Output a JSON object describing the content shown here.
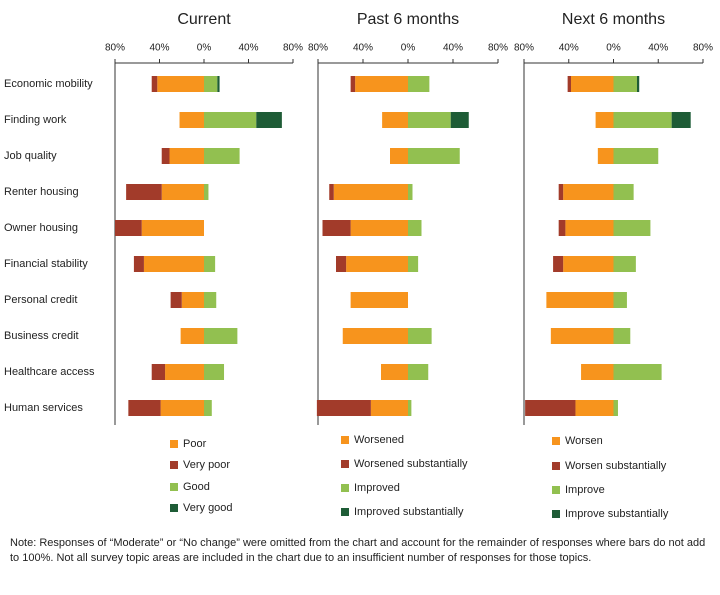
{
  "chart_data": [
    {
      "type": "bar",
      "orientation": "horizontal",
      "stacked": true,
      "title": "Current",
      "categories": [
        "Economic mobility",
        "Finding work",
        "Job quality",
        "Renter housing",
        "Owner housing",
        "Financial stability",
        "Personal credit",
        "Business credit",
        "Healthcare access",
        "Human services"
      ],
      "xlim": [
        -80,
        80
      ],
      "xticks": [
        {
          "value": -80,
          "label": "80%"
        },
        {
          "value": -40,
          "label": "40%"
        },
        {
          "value": 0,
          "label": "0%"
        },
        {
          "value": 40,
          "label": "40%"
        },
        {
          "value": 80,
          "label": "80%"
        }
      ],
      "series": [
        {
          "name": "Poor",
          "color": "#f7941d",
          "values": [
            -42,
            -22,
            -31,
            -38,
            -56,
            -54,
            -20,
            -21,
            -35,
            -39
          ]
        },
        {
          "name": "Very poor",
          "color": "#a23b2a",
          "values": [
            -5,
            0,
            -7,
            -32,
            -24,
            -9,
            -10,
            0,
            -12,
            -29
          ]
        },
        {
          "name": "Good",
          "color": "#92c050",
          "values": [
            12,
            47,
            32,
            4,
            0,
            10,
            11,
            30,
            18,
            7
          ]
        },
        {
          "name": "Very good",
          "color": "#1e5c36",
          "values": [
            2,
            23,
            0,
            0,
            0,
            0,
            0,
            0,
            0,
            0
          ]
        }
      ]
    },
    {
      "type": "bar",
      "orientation": "horizontal",
      "stacked": true,
      "title": "Past 6 months",
      "xlim": [
        -80,
        80
      ],
      "xticks": [
        {
          "value": -80,
          "label": "80%"
        },
        {
          "value": -40,
          "label": "40%"
        },
        {
          "value": 0,
          "label": "0%"
        },
        {
          "value": 40,
          "label": "40%"
        },
        {
          "value": 80,
          "label": "80%"
        }
      ],
      "series": [
        {
          "name": "Worsened",
          "color": "#f7941d",
          "values": [
            -47,
            -23,
            -16,
            -66,
            -51,
            -55,
            -51,
            -58,
            -24,
            -33
          ]
        },
        {
          "name": "Worsened substantially",
          "color": "#a23b2a",
          "values": [
            -4,
            0,
            0,
            -4,
            -25,
            -9,
            0,
            0,
            0,
            -48
          ]
        },
        {
          "name": "Improved",
          "color": "#92c050",
          "values": [
            19,
            38,
            46,
            4,
            12,
            9,
            0,
            21,
            18,
            3
          ]
        },
        {
          "name": "Improved substantially",
          "color": "#1e5c36",
          "values": [
            0,
            16,
            0,
            0,
            0,
            0,
            0,
            0,
            0,
            0
          ]
        }
      ]
    },
    {
      "type": "bar",
      "orientation": "horizontal",
      "stacked": true,
      "title": "Next 6 months",
      "xlim": [
        -80,
        80
      ],
      "xticks": [
        {
          "value": -80,
          "label": "80%"
        },
        {
          "value": -40,
          "label": "40%"
        },
        {
          "value": 0,
          "label": "0%"
        },
        {
          "value": 40,
          "label": "40%"
        },
        {
          "value": 80,
          "label": "80%"
        }
      ],
      "series": [
        {
          "name": "Worsen",
          "color": "#f7941d",
          "values": [
            -38,
            -16,
            -14,
            -45,
            -43,
            -45,
            -60,
            -56,
            -29,
            -34
          ]
        },
        {
          "name": "Worsen substantially",
          "color": "#a23b2a",
          "values": [
            -3,
            0,
            0,
            -4,
            -6,
            -9,
            0,
            0,
            0,
            -45
          ]
        },
        {
          "name": "Improve",
          "color": "#92c050",
          "values": [
            21,
            52,
            40,
            18,
            33,
            20,
            12,
            15,
            43,
            4
          ]
        },
        {
          "name": "Improve substantially",
          "color": "#1e5c36",
          "values": [
            2,
            17,
            0,
            0,
            0,
            0,
            0,
            0,
            0,
            0
          ]
        }
      ]
    }
  ],
  "note": "Note: Responses of “Moderate” or “No change” were omitted from the chart and account for the remainder of responses where bars do not add to 100%. Not all survey topic areas are included in the chart due to an insufficient number of responses for those topics."
}
